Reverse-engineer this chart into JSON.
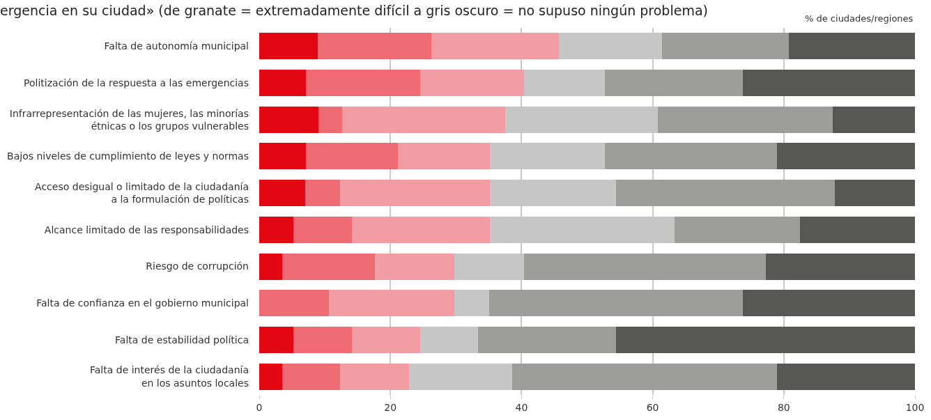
{
  "chart_data": {
    "type": "bar",
    "orientation": "horizontal",
    "stacked": true,
    "title": "ergencia en su ciudad» (de granate = extremadamente difícil a gris oscuro = no supuso ningún problema)",
    "annotations": [
      "% de ciudades/regiones"
    ],
    "categories": [
      "Falta de autonomía municipal",
      "Politización de la respuesta a las emergencias",
      "Infrarrepresentación de las mujeres, las minorías\nétnicas o los grupos vulnerables",
      "Bajos niveles de cumplimiento de leyes y normas",
      "Acceso desigual o limitado de la ciudadanía\na la formulación de políticas",
      "Alcance limitado de las responsabilidades",
      "Riesgo de corrupción",
      "Falta de confianza en el gobierno municipal",
      "Falta de estabilidad política",
      "Falta de interés de la ciudadanía\nen los asuntos locales"
    ],
    "series": [
      {
        "color": "#e30613",
        "values": [
          8.9,
          7.1,
          9.0,
          7.1,
          7.0,
          5.2,
          3.5,
          0,
          5.2,
          3.5
        ]
      },
      {
        "color": "#ee6b73",
        "values": [
          17.4,
          17.5,
          3.6,
          14.0,
          5.3,
          8.9,
          14.1,
          10.6,
          8.9,
          8.8
        ]
      },
      {
        "color": "#f29ca3",
        "values": [
          19.4,
          15.8,
          24.9,
          14.1,
          22.9,
          21.1,
          12.2,
          19.2,
          10.5,
          10.5
        ]
      },
      {
        "color": "#c6c6c6",
        "values": [
          15.7,
          12.3,
          23.3,
          17.5,
          19.2,
          28.1,
          10.6,
          5.3,
          8.8,
          15.8
        ]
      },
      {
        "color": "#9d9d9b",
        "values": [
          19.4,
          21.1,
          26.7,
          26.3,
          33.4,
          19.2,
          36.9,
          38.7,
          21.0,
          40.4
        ]
      },
      {
        "color": "#575756",
        "values": [
          19.2,
          26.2,
          12.5,
          21.0,
          12.2,
          17.5,
          22.7,
          26.2,
          45.6,
          21.0
        ]
      }
    ],
    "xlim": [
      0,
      100
    ],
    "xticks": [
      0,
      20,
      40,
      60,
      80,
      100
    ],
    "grid": "x"
  }
}
